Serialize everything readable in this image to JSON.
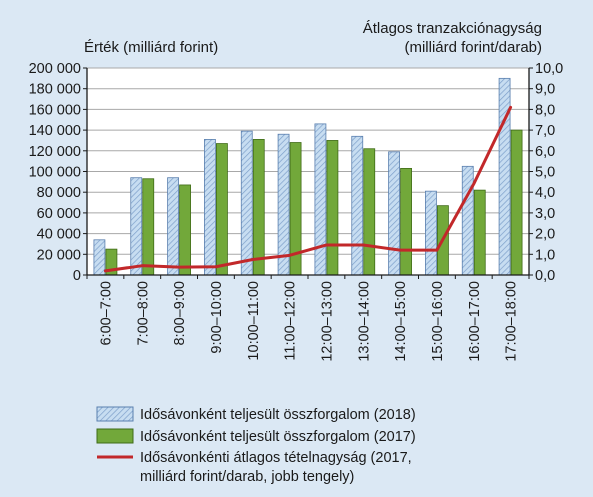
{
  "chart_data": {
    "type": "bar",
    "left_axis_title": "Érték (milliárd forint)",
    "right_axis_title_line1": "Átlagos tranzakciónagyság",
    "right_axis_title_line2": "(milliárd forint/darab)",
    "categories": [
      "6:00–7:00",
      "7:00–8:00",
      "8:00–9:00",
      "9:00–10:00",
      "10:00–11:00",
      "11:00–12:00",
      "12:00–13:00",
      "13:00–14:00",
      "14:00–15:00",
      "15:00–16:00",
      "16:00–17:00",
      "17:00–18:00"
    ],
    "left_ylim": [
      0,
      200000
    ],
    "left_ticks": [
      "0",
      "20 000",
      "40 000",
      "60 000",
      "80 000",
      "100 000",
      "120 000",
      "140 000",
      "160 000",
      "180 000",
      "200 000"
    ],
    "right_ylim": [
      0,
      10
    ],
    "right_ticks": [
      "0,0",
      "1,0",
      "2,0",
      "3,0",
      "4,0",
      "5,0",
      "6,0",
      "7,0",
      "8,0",
      "9,0",
      "10,0"
    ],
    "grid": true,
    "legend_position": "bottom",
    "series": [
      {
        "name": "Idősávonként teljesült összforgalom (2018)",
        "type": "bar",
        "axis": "left",
        "values": [
          34000,
          94000,
          94000,
          131000,
          139000,
          136000,
          146000,
          134000,
          119000,
          81000,
          105000,
          190000
        ],
        "color": "#bfd7ee",
        "stripe_color": "#6f94c0"
      },
      {
        "name": "Idősávonként teljesült összforgalom (2017)",
        "type": "bar",
        "axis": "left",
        "values": [
          25000,
          93000,
          87000,
          127000,
          131000,
          128000,
          130000,
          122000,
          103000,
          67000,
          82000,
          140000
        ],
        "color": "#72a83a"
      },
      {
        "name": "Idősávonkénti átlagos tételnagyság (2017, milliárd forint/darab, jobb tengely)",
        "type": "line",
        "axis": "right",
        "values": [
          0.2,
          0.45,
          0.38,
          0.4,
          0.75,
          0.95,
          1.45,
          1.45,
          1.2,
          1.2,
          4.4,
          8.1
        ],
        "color": "#c2282a"
      }
    ],
    "legend": [
      {
        "label": "Idősávonként teljesült összforgalom (2018)"
      },
      {
        "label": "Idősávonként teljesült összforgalom (2017)"
      },
      {
        "label_line1": "Idősávonkénti átlagos tételnagyság (2017,",
        "label_line2": "milliárd forint/darab, jobb tengely)"
      }
    ]
  }
}
